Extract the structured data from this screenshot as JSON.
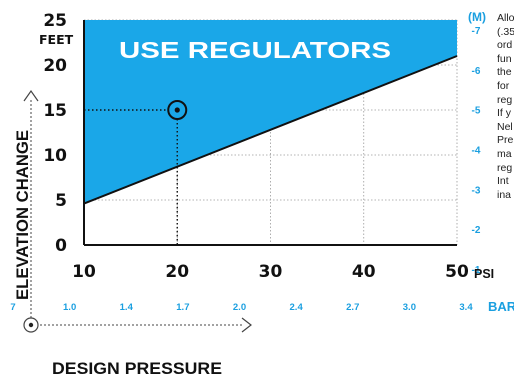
{
  "chart_data": {
    "type": "area",
    "title": "",
    "region_label": "USE REGULATORS",
    "xlabel": "DESIGN PRESSURE",
    "ylabel": "ELEVATION CHANGE",
    "y_unit_label": "FEET",
    "y2_unit_label": "(M)",
    "x_unit_label": "PSI",
    "x2_unit_label": "BAR",
    "xlim": [
      10,
      50
    ],
    "ylim": [
      0,
      25
    ],
    "x_ticks": [
      "10",
      "20",
      "30",
      "40",
      "50"
    ],
    "y_ticks": [
      "0",
      "5",
      "10",
      "15",
      "20",
      "25"
    ],
    "y2_ticks": [
      "-1",
      "-2",
      "-3",
      "-4",
      "-5",
      "-6",
      "-7"
    ],
    "bar_ticks": [
      "7",
      "1.0",
      "1.4",
      "1.7",
      "2.0",
      "2.4",
      "2.7",
      "3.0",
      "3.4"
    ],
    "grid": true,
    "series": [
      {
        "x": [
          10,
          50
        ],
        "y": [
          4.6,
          21
        ]
      }
    ],
    "region": "above_line",
    "marker": {
      "x": 20,
      "y": 15
    },
    "colors": {
      "fill": "#1aa7e8",
      "line": "#111111",
      "accent": "#1a9fe0",
      "text": "#111111"
    }
  },
  "side_text": [
    "Allo",
    "(.35",
    "ord",
    "fun",
    "the",
    "for",
    "reg",
    "If y",
    "Nel",
    "Pre",
    "ma",
    "reg",
    "Int",
    "ina"
  ]
}
